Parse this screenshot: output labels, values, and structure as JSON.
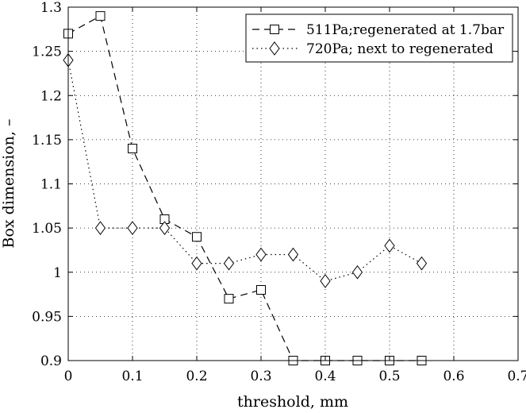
{
  "chart_data": {
    "type": "line",
    "title": "",
    "xlabel": "threshold, mm",
    "ylabel": "Box dimension, –",
    "xlim": [
      0,
      0.7
    ],
    "ylim": [
      0.9,
      1.3
    ],
    "xticks": [
      "0",
      "0.1",
      "0.2",
      "0.3",
      "0.4",
      "0.5",
      "0.6",
      "0.7"
    ],
    "yticks": [
      "0.9",
      "0.95",
      "1",
      "1.05",
      "1.1",
      "1.15",
      "1.2",
      "1.25",
      "1.3"
    ],
    "grid": true,
    "legend_position": "top-right",
    "series": [
      {
        "name": "511Pa;regenerated at 1.7bar",
        "marker": "square",
        "line_style": "dashed",
        "x": [
          0,
          0.05,
          0.1,
          0.15,
          0.2,
          0.25,
          0.3,
          0.35,
          0.4,
          0.45,
          0.5,
          0.55
        ],
        "y": [
          1.27,
          1.29,
          1.14,
          1.06,
          1.04,
          0.97,
          0.98,
          0.9,
          0.9,
          0.9,
          0.9,
          0.9
        ]
      },
      {
        "name": "720Pa; next to regenerated",
        "marker": "diamond",
        "line_style": "dotted",
        "x": [
          0,
          0.05,
          0.1,
          0.15,
          0.2,
          0.25,
          0.3,
          0.35,
          0.4,
          0.45,
          0.5,
          0.55
        ],
        "y": [
          1.24,
          1.05,
          1.05,
          1.05,
          1.01,
          1.01,
          1.02,
          1.02,
          0.99,
          1.0,
          1.03,
          1.01
        ]
      }
    ]
  }
}
